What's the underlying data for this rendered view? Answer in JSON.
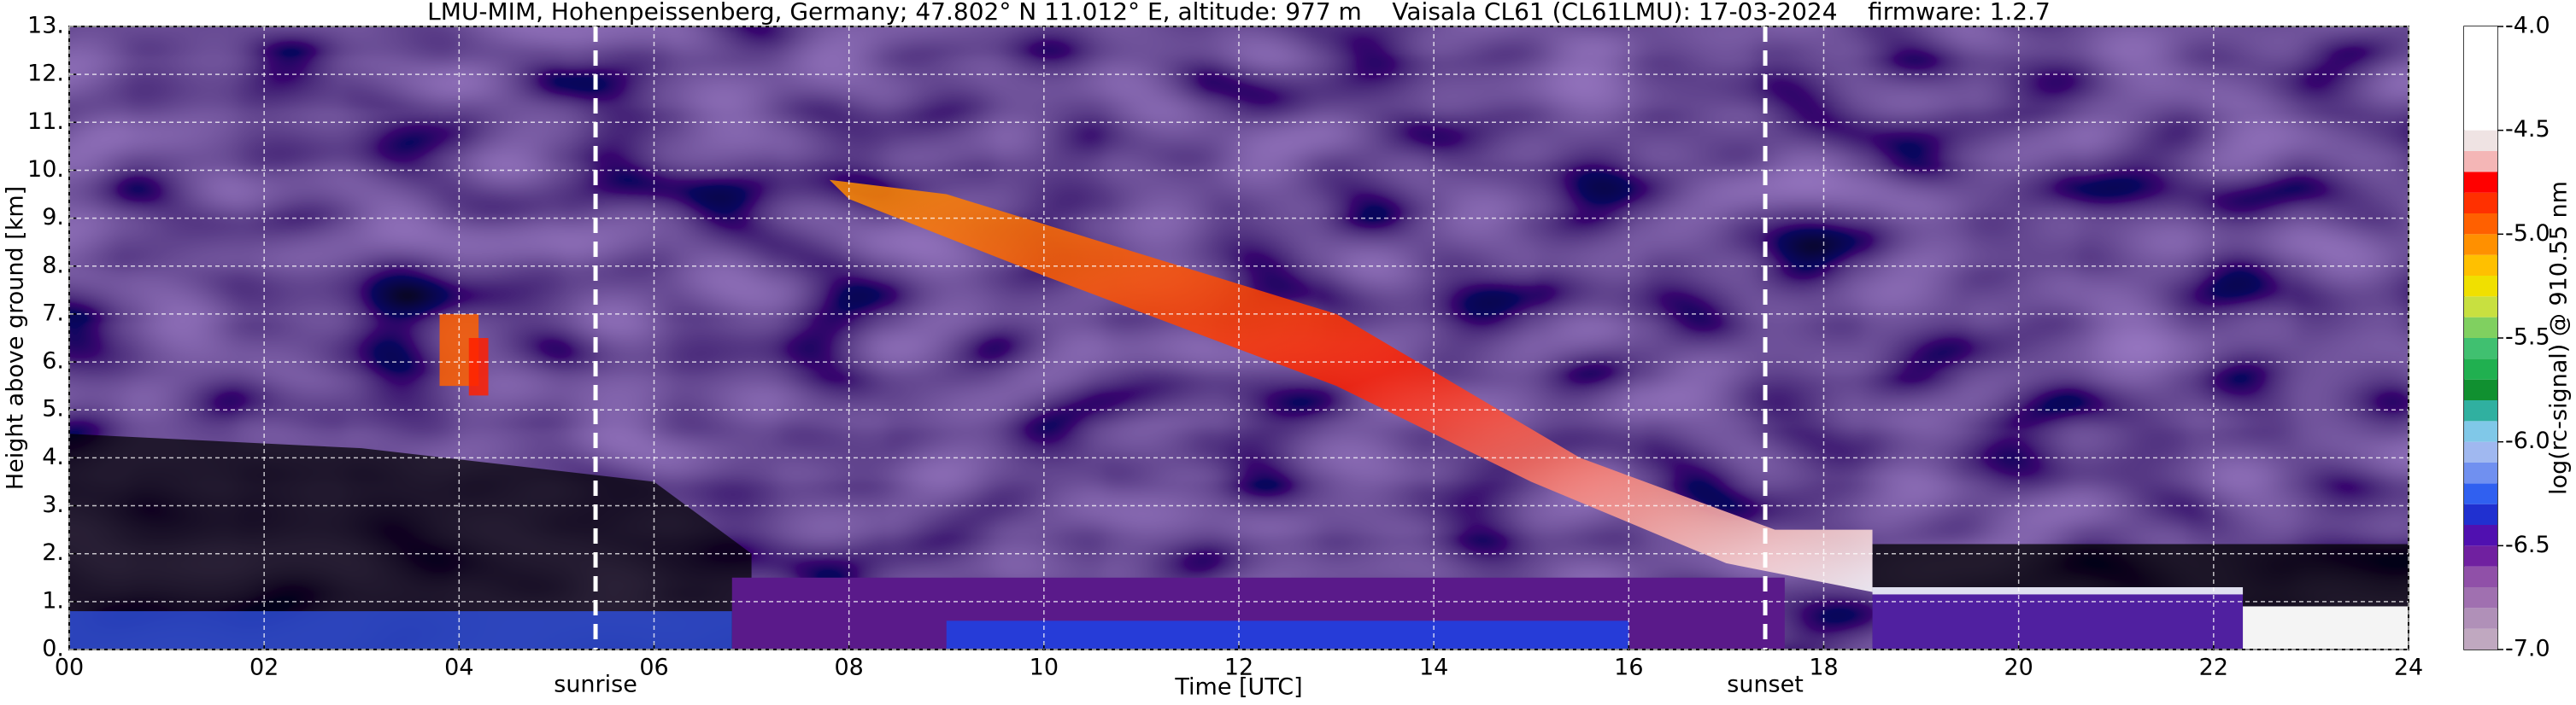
{
  "chart_data": {
    "type": "heatmap",
    "title": "LMU-MIM, Hohenpeissenberg, Germany; 47.802° N 11.012° E, altitude: 977 m    Vaisala CL61 (CL61LMU): 17-03-2024    firmware: 1.2.7",
    "x_label": "Time [UTC]",
    "y_label": "Height above ground [km]",
    "xlim": [
      0,
      24
    ],
    "xticks": [
      {
        "value": 0,
        "label": "00"
      },
      {
        "value": 2,
        "label": "02"
      },
      {
        "value": 4,
        "label": "04"
      },
      {
        "value": 6,
        "label": "06"
      },
      {
        "value": 8,
        "label": "08"
      },
      {
        "value": 10,
        "label": "10"
      },
      {
        "value": 12,
        "label": "12"
      },
      {
        "value": 14,
        "label": "14"
      },
      {
        "value": 16,
        "label": "16"
      },
      {
        "value": 18,
        "label": "18"
      },
      {
        "value": 20,
        "label": "20"
      },
      {
        "value": 22,
        "label": "22"
      },
      {
        "value": 24,
        "label": "24"
      }
    ],
    "ylim": [
      0,
      13
    ],
    "yticks": [
      {
        "value": 0,
        "label": "0."
      },
      {
        "value": 1,
        "label": "1."
      },
      {
        "value": 2,
        "label": "2."
      },
      {
        "value": 3,
        "label": "3."
      },
      {
        "value": 4,
        "label": "4."
      },
      {
        "value": 5,
        "label": "5."
      },
      {
        "value": 6,
        "label": "6."
      },
      {
        "value": 7,
        "label": "7."
      },
      {
        "value": 8,
        "label": "8."
      },
      {
        "value": 9,
        "label": "9."
      },
      {
        "value": 10,
        "label": "10."
      },
      {
        "value": 11,
        "label": "11."
      },
      {
        "value": 12,
        "label": "12."
      },
      {
        "value": 13,
        "label": "13."
      }
    ],
    "grid": true,
    "annotations": [
      {
        "x": 5.4,
        "label": "sunrise"
      },
      {
        "x": 17.4,
        "label": "sunset"
      }
    ],
    "colorbar": {
      "label": "log(rc-signal) @ 910.55 nm",
      "bounds": [
        -7.0,
        -6.9,
        -6.8,
        -6.7,
        -6.6,
        -6.5,
        -6.4,
        -6.3,
        -6.2,
        -6.1,
        -6.0,
        -5.9,
        -5.8,
        -5.7,
        -5.6,
        -5.5,
        -5.4,
        -5.3,
        -5.2,
        -5.1,
        -5.0,
        -4.9,
        -4.8,
        -4.7,
        -4.6,
        -4.5,
        -4.0
      ],
      "colors": [
        "#c0a8c0",
        "#b090b8",
        "#a070b0",
        "#9050a8",
        "#7020a0",
        "#5010b0",
        "#2030d0",
        "#3060f0",
        "#7090f0",
        "#a0b8f0",
        "#80c8e8",
        "#30b0a0",
        "#109030",
        "#20b050",
        "#40c070",
        "#80d060",
        "#c8e040",
        "#f0e000",
        "#ffc000",
        "#ff9000",
        "#ff6000",
        "#ff3000",
        "#ff0000",
        "#f4b6b6",
        "#efe3e3",
        "#ffffff"
      ],
      "ticks": [
        {
          "value": -7.0,
          "label": "-7.0"
        },
        {
          "value": -6.5,
          "label": "-6.5"
        },
        {
          "value": -6.0,
          "label": "-6.0"
        },
        {
          "value": -5.5,
          "label": "-5.5"
        },
        {
          "value": -5.0,
          "label": "-5.0"
        },
        {
          "value": -4.5,
          "label": "-4.5"
        },
        {
          "value": -4.0,
          "label": "-4.0"
        }
      ]
    }
  }
}
